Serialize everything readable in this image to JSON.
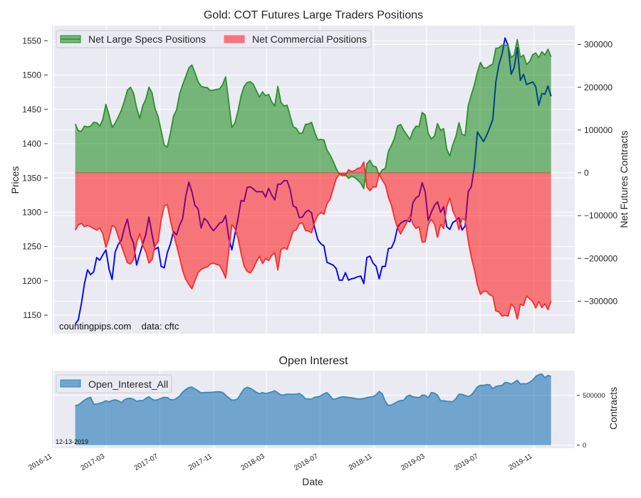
{
  "chart_data": [
    {
      "type": "area",
      "title": "Gold: COT Futures Large Traders Positions",
      "xlabel": "",
      "ylabel_left": "Prices",
      "ylabel_right": "Net Futures Contracts",
      "grid": true,
      "legend": "top-left",
      "annotation": "countingpips.com    data: cftc",
      "x": {
        "start_date": "2016-12-20",
        "step_days": 7,
        "count": 156,
        "xlim": [
          "2016-10-28",
          "2020-02-02"
        ],
        "ticks": [
          "2016-11-01",
          "2017-03-01",
          "2017-07-01",
          "2017-11-01",
          "2018-03-01",
          "2018-07-01",
          "2018-11-01",
          "2019-03-01",
          "2019-07-01",
          "2019-11-01"
        ],
        "tick_labels": [
          "2016-11",
          "2017-03",
          "2017-07",
          "2017-11",
          "2018-03",
          "2018-07",
          "2018-11",
          "2019-03",
          "2019-07",
          "2019-11"
        ],
        "tick_labels_visible": false
      },
      "ylim_left": [
        1123,
        1572
      ],
      "ylim_right": [
        -376000,
        344000
      ],
      "yticks_left": {
        "values": [
          1150,
          1200,
          1250,
          1300,
          1350,
          1400,
          1450,
          1500,
          1550
        ],
        "labels": [
          "1150",
          "1200",
          "1250",
          "1300",
          "1350",
          "1400",
          "1450",
          "1500",
          "1550"
        ]
      },
      "yticks_right": {
        "values": [
          -300000,
          -200000,
          -100000,
          0,
          100000,
          200000,
          300000
        ],
        "labels": [
          "−300000",
          "−200000",
          "−100000",
          "0",
          "100000",
          "200000",
          "300000"
        ]
      },
      "series": [
        {
          "name": "Net Large Specs Positions",
          "kind": "area",
          "axis": "right",
          "color": "#008000",
          "line_color": "#2d8f2d",
          "values": [
            114000,
            98000,
            97000,
            109000,
            107000,
            109000,
            118000,
            117000,
            109000,
            125000,
            160000,
            135000,
            106000,
            116000,
            130000,
            146000,
            167000,
            193000,
            200000,
            186000,
            152000,
            127000,
            157000,
            172000,
            200000,
            187000,
            150000,
            131000,
            98000,
            64000,
            60000,
            93000,
            132000,
            147000,
            184000,
            206000,
            225000,
            245000,
            252000,
            234000,
            213000,
            202000,
            200000,
            199000,
            192000,
            193000,
            195000,
            196000,
            206000,
            224000,
            165000,
            106000,
            116000,
            144000,
            179000,
            202000,
            211000,
            213000,
            207000,
            192000,
            177000,
            189000,
            180000,
            183000,
            166000,
            156000,
            202000,
            165000,
            156000,
            158000,
            133000,
            107000,
            104000,
            92000,
            93000,
            113000,
            114000,
            118000,
            95000,
            77000,
            78000,
            77000,
            53000,
            42000,
            27000,
            10000,
            -3000,
            -7000,
            -4000,
            -13000,
            -8000,
            -11000,
            -17000,
            -24000,
            -37000,
            21000,
            29000,
            16000,
            14000,
            -6000,
            7000,
            10000,
            50000,
            64000,
            81000,
            109000,
            113000,
            99000,
            89000,
            78000,
            98000,
            109000,
            108000,
            141000,
            135000,
            92000,
            79000,
            86000,
            115000,
            99000,
            103000,
            56000,
            39000,
            66000,
            85000,
            117000,
            90000,
            87000,
            157000,
            182000,
            205000,
            235000,
            258000,
            245000,
            245000,
            250000,
            254000,
            291000,
            292000,
            298000,
            298000,
            298000,
            269000,
            276000,
            311000,
            270000,
            275000,
            253000,
            260000,
            276000,
            280000,
            269000,
            283000,
            275000,
            289000,
            271000
          ]
        },
        {
          "name": "Net Commercial Positions",
          "kind": "area",
          "axis": "right",
          "color": "#ff0000",
          "line_color": "#ff2a2a",
          "values": [
            -134000,
            -122000,
            -118000,
            -126000,
            -123000,
            -126000,
            -130000,
            -134000,
            -129000,
            -143000,
            -174000,
            -152000,
            -123000,
            -127000,
            -149000,
            -170000,
            -190000,
            -210000,
            -213000,
            -203000,
            -164000,
            -142000,
            -170000,
            -185000,
            -211000,
            -203000,
            -171000,
            -161000,
            -110000,
            -77000,
            -74000,
            -112000,
            -143000,
            -170000,
            -198000,
            -229000,
            -249000,
            -261000,
            -271000,
            -252000,
            -233000,
            -226000,
            -222000,
            -220000,
            -213000,
            -211000,
            -214000,
            -216000,
            -229000,
            -246000,
            -183000,
            -121000,
            -130000,
            -152000,
            -188000,
            -218000,
            -230000,
            -234000,
            -224000,
            -208000,
            -195000,
            -212000,
            -200000,
            -205000,
            -193000,
            -187000,
            -227000,
            -180000,
            -175000,
            -179000,
            -157000,
            -136000,
            -133000,
            -119000,
            -117000,
            -135000,
            -136000,
            -140000,
            -115000,
            -99000,
            -93000,
            -97000,
            -72000,
            -62000,
            -38000,
            -14000,
            -4000,
            -4000,
            -7000,
            7000,
            3000,
            5000,
            10000,
            12000,
            25000,
            -33000,
            -42000,
            -33000,
            -33000,
            -3000,
            -17000,
            -28000,
            -57000,
            -76000,
            -106000,
            -129000,
            -143000,
            -129000,
            -116000,
            -100000,
            -120000,
            -130000,
            -126000,
            -162000,
            -161000,
            -121000,
            -109000,
            -119000,
            -151000,
            -120000,
            -130000,
            -80000,
            -58000,
            -89000,
            -104000,
            -133000,
            -107000,
            -110000,
            -159000,
            -197000,
            -226000,
            -262000,
            -284000,
            -277000,
            -277000,
            -285000,
            -288000,
            -323000,
            -325000,
            -335000,
            -333000,
            -335000,
            -307000,
            -314000,
            -342000,
            -307000,
            -310000,
            -288000,
            -294000,
            -301000,
            -316000,
            -301000,
            -315000,
            -306000,
            -320000,
            -299000
          ]
        },
        {
          "name": "Price",
          "kind": "line",
          "axis": "left",
          "color": "#0000ff",
          "in_legend": false,
          "values": [
            1137,
            1143,
            1167,
            1196,
            1216,
            1209,
            1213,
            1234,
            1230,
            1238,
            1245,
            1217,
            1202,
            1242,
            1253,
            1259,
            1277,
            1290,
            1266,
            1255,
            1223,
            1239,
            1254,
            1268,
            1293,
            1268,
            1246,
            1249,
            1221,
            1219,
            1241,
            1254,
            1272,
            1267,
            1281,
            1291,
            1323,
            1344,
            1330,
            1310,
            1305,
            1277,
            1291,
            1287,
            1279,
            1273,
            1278,
            1284,
            1286,
            1295,
            1263,
            1245,
            1268,
            1290,
            1317,
            1316,
            1336,
            1337,
            1334,
            1330,
            1330,
            1330,
            1322,
            1335,
            1325,
            1318,
            1341,
            1341,
            1346,
            1346,
            1333,
            1309,
            1307,
            1292,
            1293,
            1300,
            1303,
            1299,
            1277,
            1260,
            1254,
            1251,
            1227,
            1225,
            1223,
            1218,
            1201,
            1201,
            1212,
            1201,
            1203,
            1204,
            1206,
            1207,
            1196,
            1234,
            1236,
            1226,
            1221,
            1203,
            1221,
            1221,
            1247,
            1248,
            1258,
            1278,
            1284,
            1287,
            1288,
            1286,
            1314,
            1321,
            1324,
            1343,
            1330,
            1288,
            1300,
            1310,
            1315,
            1300,
            1308,
            1279,
            1275,
            1285,
            1288,
            1292,
            1274,
            1280,
            1330,
            1337,
            1366,
            1417,
            1410,
            1403,
            1412,
            1423,
            1435,
            1490,
            1515,
            1530,
            1554,
            1543,
            1501,
            1511,
            1540,
            1492,
            1501,
            1486,
            1488,
            1490,
            1483,
            1456,
            1473,
            1472,
            1484,
            1469
          ]
        }
      ]
    },
    {
      "type": "area",
      "title": "Open Interest",
      "xlabel": "Date",
      "ylabel_right": "Contracts",
      "grid": true,
      "legend": "top-left",
      "annotation": "12-13-2019",
      "x": {
        "start_date": "2016-12-20",
        "step_days": 7,
        "count": 156,
        "xlim": [
          "2016-10-28",
          "2020-02-02"
        ],
        "ticks": [
          "2016-11-01",
          "2017-03-01",
          "2017-07-01",
          "2017-11-01",
          "2018-03-01",
          "2018-07-01",
          "2018-11-01",
          "2019-03-01",
          "2019-07-01",
          "2019-11-01"
        ],
        "tick_labels": [
          "2016-11",
          "2017-03",
          "2017-07",
          "2017-11",
          "2018-03",
          "2018-07",
          "2018-11",
          "2019-03",
          "2019-07",
          "2019-11"
        ],
        "tick_labels_visible": true
      },
      "ylim": [
        -31000,
        748000
      ],
      "yticks_right": {
        "values": [
          0,
          500000
        ],
        "labels": [
          "0",
          "500000"
        ]
      },
      "series": [
        {
          "name": "Open_Interest_All",
          "kind": "area",
          "axis": "right",
          "color": "#1f77b4",
          "line_color": "#3b87bb",
          "values": [
            396000,
            403000,
            428000,
            452000,
            470000,
            480000,
            412000,
            413000,
            419000,
            431000,
            445000,
            434000,
            448000,
            455000,
            446000,
            427000,
            455000,
            468000,
            471000,
            460000,
            440000,
            448000,
            446000,
            470000,
            485000,
            461000,
            451000,
            457000,
            471000,
            481000,
            477000,
            457000,
            454000,
            469000,
            493000,
            532000,
            559000,
            578000,
            583000,
            565000,
            545000,
            524000,
            528000,
            529000,
            529000,
            532000,
            535000,
            536000,
            530000,
            502000,
            475000,
            452000,
            453000,
            467000,
            520000,
            565000,
            581000,
            571000,
            552000,
            531000,
            515000,
            528000,
            518000,
            525000,
            535000,
            545000,
            524000,
            502000,
            505000,
            512000,
            510000,
            510000,
            512000,
            517000,
            498000,
            466000,
            462000,
            463000,
            480000,
            485000,
            496000,
            515000,
            528000,
            494000,
            458000,
            467000,
            478000,
            485000,
            482000,
            479000,
            475000,
            470000,
            463000,
            464000,
            468000,
            477000,
            483000,
            488000,
            505000,
            539000,
            515000,
            438000,
            398000,
            403000,
            420000,
            437000,
            448000,
            450000,
            490000,
            502000,
            485000,
            481000,
            477000,
            502000,
            500000,
            476000,
            528000,
            522000,
            501000,
            446000,
            446000,
            441000,
            437000,
            437000,
            466000,
            512000,
            509000,
            498000,
            488000,
            503000,
            540000,
            585000,
            600000,
            600000,
            607000,
            606000,
            567000,
            589000,
            595000,
            600000,
            630000,
            625000,
            613000,
            630000,
            651000,
            613000,
            617000,
            615000,
            631000,
            652000,
            690000,
            708000,
            714000,
            677000,
            700000,
            690000
          ]
        }
      ]
    }
  ]
}
